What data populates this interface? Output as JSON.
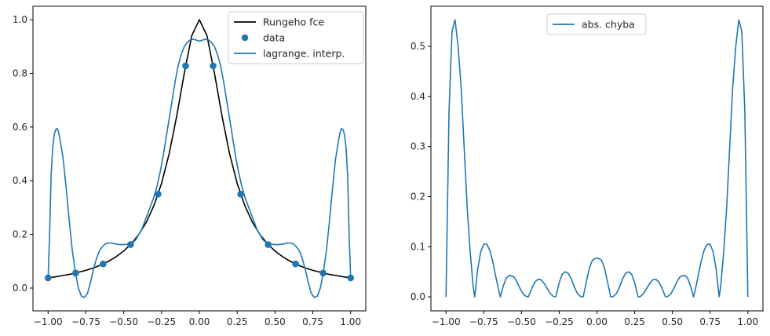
{
  "colors": {
    "runge": "#000000",
    "interp": "#1f77b4",
    "data": "#1f77b4",
    "error": "#1f77b4"
  },
  "chart_data": [
    {
      "type": "line",
      "title": "",
      "xlabel": "",
      "ylabel": "",
      "xlim": [
        -1.1,
        1.1
      ],
      "ylim": [
        -0.085,
        1.05
      ],
      "xticks": [
        -1.0,
        -0.75,
        -0.5,
        -0.25,
        0.0,
        0.25,
        0.5,
        0.75,
        1.0
      ],
      "xtick_labels": [
        "−1.00",
        "−0.75",
        "−0.50",
        "−0.25",
        "0.00",
        "0.25",
        "0.50",
        "0.75",
        "1.00"
      ],
      "yticks": [
        0.0,
        0.2,
        0.4,
        0.6,
        0.8,
        1.0
      ],
      "ytick_labels": [
        "0.0",
        "0.2",
        "0.4",
        "0.6",
        "0.8",
        "1.0"
      ],
      "legend": {
        "placement": "top-right",
        "entries": [
          {
            "label": "Rungeho fce",
            "marker": "line",
            "color": "#000000"
          },
          {
            "label": "data",
            "marker": "dot",
            "color": "#1f77b4"
          },
          {
            "label": "lagrange. interp.",
            "marker": "line",
            "color": "#1f77b4"
          }
        ]
      },
      "series": [
        {
          "name": "Rungeho fce",
          "kind": "line",
          "color": "#000000",
          "x": [
            -1.0,
            -0.95,
            -0.9,
            -0.85,
            -0.8,
            -0.75,
            -0.7,
            -0.65,
            -0.6,
            -0.55,
            -0.5,
            -0.45,
            -0.4,
            -0.35,
            -0.3,
            -0.25,
            -0.2,
            -0.15,
            -0.1,
            -0.05,
            0.0,
            0.05,
            0.1,
            0.15,
            0.2,
            0.25,
            0.3,
            0.35,
            0.4,
            0.45,
            0.5,
            0.55,
            0.6,
            0.65,
            0.7,
            0.75,
            0.8,
            0.85,
            0.9,
            0.95,
            1.0
          ],
          "y": [
            0.038,
            0.042,
            0.047,
            0.052,
            0.059,
            0.066,
            0.075,
            0.086,
            0.1,
            0.117,
            0.138,
            0.165,
            0.2,
            0.246,
            0.308,
            0.39,
            0.5,
            0.64,
            0.8,
            0.941,
            1.0,
            0.941,
            0.8,
            0.64,
            0.5,
            0.39,
            0.308,
            0.246,
            0.2,
            0.165,
            0.138,
            0.117,
            0.1,
            0.086,
            0.075,
            0.066,
            0.059,
            0.052,
            0.047,
            0.042,
            0.038
          ]
        },
        {
          "name": "data",
          "kind": "scatter",
          "color": "#1f77b4",
          "x": [
            -1.0,
            -0.818,
            -0.636,
            -0.455,
            -0.273,
            -0.091,
            0.091,
            0.273,
            0.455,
            0.636,
            0.818,
            1.0
          ],
          "y": [
            0.038,
            0.056,
            0.09,
            0.162,
            0.35,
            0.828,
            0.828,
            0.35,
            0.162,
            0.09,
            0.056,
            0.038
          ]
        },
        {
          "name": "lagrange. interp.",
          "kind": "line",
          "color": "#1f77b4",
          "x": [
            -1.0,
            -0.99,
            -0.98,
            -0.97,
            -0.96,
            -0.95,
            -0.94,
            -0.93,
            -0.92,
            -0.9,
            -0.88,
            -0.86,
            -0.84,
            -0.82,
            -0.8,
            -0.78,
            -0.76,
            -0.74,
            -0.72,
            -0.7,
            -0.68,
            -0.66,
            -0.64,
            -0.62,
            -0.6,
            -0.58,
            -0.56,
            -0.54,
            -0.52,
            -0.5,
            -0.48,
            -0.46,
            -0.44,
            -0.42,
            -0.4,
            -0.38,
            -0.36,
            -0.34,
            -0.32,
            -0.3,
            -0.28,
            -0.26,
            -0.24,
            -0.22,
            -0.2,
            -0.18,
            -0.16,
            -0.14,
            -0.12,
            -0.1,
            -0.08,
            -0.06,
            -0.04,
            -0.02,
            0.0,
            0.02,
            0.04,
            0.06,
            0.08,
            0.1,
            0.12,
            0.14,
            0.16,
            0.18,
            0.2,
            0.22,
            0.24,
            0.26,
            0.28,
            0.3,
            0.32,
            0.34,
            0.36,
            0.38,
            0.4,
            0.42,
            0.44,
            0.46,
            0.48,
            0.5,
            0.52,
            0.54,
            0.56,
            0.58,
            0.6,
            0.62,
            0.64,
            0.66,
            0.68,
            0.7,
            0.72,
            0.74,
            0.76,
            0.78,
            0.8,
            0.82,
            0.84,
            0.86,
            0.88,
            0.9,
            0.92,
            0.93,
            0.94,
            0.95,
            0.96,
            0.97,
            0.98,
            0.99,
            1.0
          ],
          "y": [
            0.038,
            0.2,
            0.42,
            0.52,
            0.57,
            0.59,
            0.595,
            0.58,
            0.55,
            0.48,
            0.37,
            0.25,
            0.14,
            0.06,
            0.0,
            -0.03,
            -0.035,
            -0.02,
            0.02,
            0.07,
            0.11,
            0.14,
            0.155,
            0.165,
            0.168,
            0.168,
            0.165,
            0.163,
            0.162,
            0.162,
            0.163,
            0.165,
            0.17,
            0.18,
            0.2,
            0.22,
            0.25,
            0.28,
            0.31,
            0.34,
            0.38,
            0.43,
            0.49,
            0.56,
            0.63,
            0.7,
            0.77,
            0.83,
            0.87,
            0.9,
            0.915,
            0.925,
            0.927,
            0.924,
            0.92,
            0.924,
            0.927,
            0.925,
            0.915,
            0.9,
            0.87,
            0.83,
            0.77,
            0.7,
            0.63,
            0.56,
            0.49,
            0.43,
            0.38,
            0.34,
            0.31,
            0.28,
            0.25,
            0.22,
            0.2,
            0.18,
            0.17,
            0.165,
            0.163,
            0.162,
            0.162,
            0.163,
            0.165,
            0.168,
            0.168,
            0.165,
            0.155,
            0.14,
            0.11,
            0.07,
            0.02,
            -0.02,
            -0.035,
            -0.03,
            0.0,
            0.06,
            0.14,
            0.25,
            0.37,
            0.48,
            0.55,
            0.58,
            0.595,
            0.59,
            0.57,
            0.52,
            0.42,
            0.2,
            0.038
          ]
        }
      ]
    },
    {
      "type": "line",
      "title": "",
      "xlabel": "",
      "ylabel": "",
      "xlim": [
        -1.1,
        1.1
      ],
      "ylim": [
        -0.028,
        0.58
      ],
      "xticks": [
        -1.0,
        -0.75,
        -0.5,
        -0.25,
        0.0,
        0.25,
        0.5,
        0.75,
        1.0
      ],
      "xtick_labels": [
        "−1.00",
        "−0.75",
        "−0.50",
        "−0.25",
        "0.00",
        "0.25",
        "0.50",
        "0.75",
        "1.00"
      ],
      "yticks": [
        0.0,
        0.1,
        0.2,
        0.3,
        0.4,
        0.5
      ],
      "ytick_labels": [
        "0.0",
        "0.1",
        "0.2",
        "0.3",
        "0.4",
        "0.5"
      ],
      "legend": {
        "placement": "upper center",
        "entries": [
          {
            "label": "abs. chyba",
            "marker": "line",
            "color": "#1f77b4"
          }
        ]
      },
      "series": [
        {
          "name": "abs. chyba",
          "kind": "line",
          "color": "#1f77b4",
          "x": [
            -1.0,
            -0.98,
            -0.96,
            -0.94,
            -0.92,
            -0.9,
            -0.88,
            -0.86,
            -0.84,
            -0.82,
            -0.81,
            -0.79,
            -0.77,
            -0.75,
            -0.73,
            -0.71,
            -0.69,
            -0.67,
            -0.65,
            -0.64,
            -0.62,
            -0.6,
            -0.58,
            -0.55,
            -0.53,
            -0.51,
            -0.49,
            -0.47,
            -0.455,
            -0.43,
            -0.41,
            -0.39,
            -0.37,
            -0.35,
            -0.33,
            -0.31,
            -0.29,
            -0.273,
            -0.25,
            -0.23,
            -0.21,
            -0.19,
            -0.17,
            -0.15,
            -0.13,
            -0.11,
            -0.091,
            -0.07,
            -0.05,
            -0.03,
            -0.01,
            0.0,
            0.01,
            0.03,
            0.05,
            0.07,
            0.091,
            0.11,
            0.13,
            0.15,
            0.17,
            0.19,
            0.21,
            0.23,
            0.25,
            0.273,
            0.29,
            0.31,
            0.33,
            0.35,
            0.37,
            0.39,
            0.41,
            0.43,
            0.455,
            0.47,
            0.49,
            0.51,
            0.53,
            0.55,
            0.58,
            0.6,
            0.62,
            0.64,
            0.65,
            0.67,
            0.69,
            0.71,
            0.73,
            0.75,
            0.77,
            0.79,
            0.81,
            0.82,
            0.84,
            0.86,
            0.88,
            0.9,
            0.92,
            0.94,
            0.96,
            0.98,
            1.0
          ],
          "y": [
            0.0,
            0.37,
            0.53,
            0.553,
            0.5,
            0.42,
            0.3,
            0.18,
            0.09,
            0.02,
            0.0,
            0.055,
            0.09,
            0.105,
            0.105,
            0.093,
            0.07,
            0.04,
            0.012,
            0.0,
            0.022,
            0.038,
            0.043,
            0.04,
            0.03,
            0.017,
            0.006,
            0.001,
            0.0,
            0.018,
            0.03,
            0.035,
            0.034,
            0.027,
            0.017,
            0.007,
            0.001,
            0.0,
            0.028,
            0.045,
            0.05,
            0.047,
            0.036,
            0.02,
            0.007,
            0.001,
            0.0,
            0.03,
            0.058,
            0.073,
            0.077,
            0.077,
            0.077,
            0.073,
            0.058,
            0.03,
            0.0,
            0.001,
            0.007,
            0.02,
            0.036,
            0.047,
            0.05,
            0.045,
            0.028,
            0.0,
            0.001,
            0.007,
            0.017,
            0.027,
            0.034,
            0.035,
            0.03,
            0.018,
            0.0,
            0.001,
            0.006,
            0.017,
            0.03,
            0.04,
            0.043,
            0.038,
            0.022,
            0.0,
            0.012,
            0.04,
            0.07,
            0.093,
            0.105,
            0.105,
            0.09,
            0.055,
            0.0,
            0.02,
            0.09,
            0.18,
            0.3,
            0.42,
            0.5,
            0.553,
            0.53,
            0.37,
            0.0
          ]
        }
      ]
    }
  ]
}
